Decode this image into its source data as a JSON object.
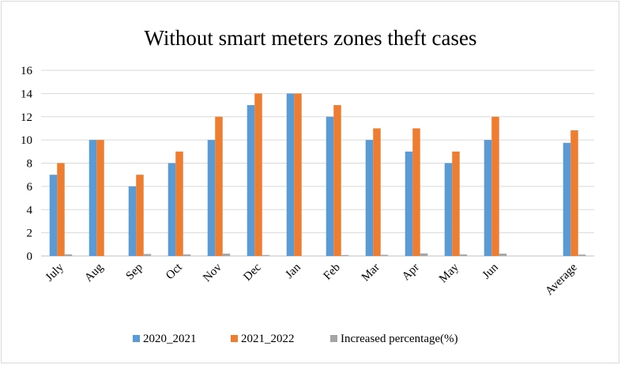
{
  "chart_data": {
    "type": "bar",
    "title": "Without smart meters zones theft cases",
    "xlabel": "",
    "ylabel": "",
    "ylim": [
      0,
      16
    ],
    "yticks": [
      0,
      2,
      4,
      6,
      8,
      10,
      12,
      14,
      16
    ],
    "grid": true,
    "legend_position": "bottom",
    "categories": [
      "July",
      "Aug",
      "Sep",
      "Oct",
      "Nov",
      "Dec",
      "Jan",
      "Feb",
      "Mar",
      "Apr",
      "May",
      "Jun",
      "",
      "Average"
    ],
    "series": [
      {
        "name": "2020_2021",
        "color": "#5b9bd5",
        "values": [
          7,
          10,
          6,
          8,
          10,
          13,
          14,
          12,
          10,
          9,
          8,
          10,
          null,
          9.75
        ]
      },
      {
        "name": "2021_2022",
        "color": "#ed7d31",
        "values": [
          8,
          10,
          7,
          9,
          12,
          14,
          14,
          13,
          11,
          11,
          9,
          12,
          null,
          10.83
        ]
      },
      {
        "name": "Increased percentage(%)",
        "color": "#a5a5a5",
        "values": [
          0.14,
          0,
          0.17,
          0.13,
          0.2,
          0.08,
          0,
          0.08,
          0.1,
          0.22,
          0.13,
          0.2,
          null,
          0.12
        ]
      }
    ]
  }
}
